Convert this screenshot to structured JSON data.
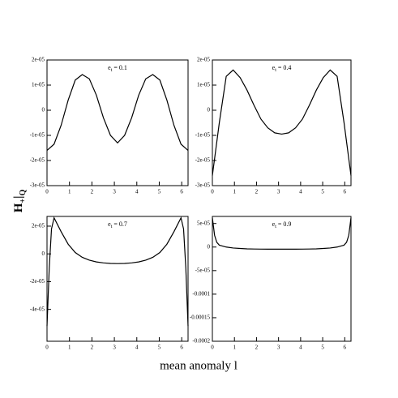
{
  "xlabel": "mean anomaly l",
  "ylabel": [
    {
      "text": "H",
      "sub": false
    },
    {
      "text": "+",
      "sub": true
    },
    {
      "text": "|",
      "sub": false
    },
    {
      "text": "Q",
      "sub": true
    }
  ],
  "chart_data": [
    {
      "type": "line",
      "annotation": {
        "base": "e",
        "sub": "t",
        "rest": " = 0.1"
      },
      "color": "#000000",
      "x": [
        0,
        0.314,
        0.628,
        0.942,
        1.257,
        1.571,
        1.885,
        2.199,
        2.513,
        2.827,
        3.142,
        3.456,
        3.77,
        4.084,
        4.398,
        4.712,
        5.027,
        5.341,
        5.655,
        5.969,
        6.283
      ],
      "values": [
        -1.6e-05,
        -1.35e-05,
        -6e-06,
        4e-06,
        1.2e-05,
        1.42e-05,
        1.25e-05,
        6e-06,
        -3e-06,
        -1e-05,
        -1.3e-05,
        -1e-05,
        -3e-06,
        6e-06,
        1.25e-05,
        1.42e-05,
        1.2e-05,
        4e-06,
        -6e-06,
        -1.35e-05,
        -1.6e-05
      ],
      "xlim": [
        0,
        6.283
      ],
      "xticks": [
        0,
        1,
        2,
        3,
        4,
        5,
        6
      ],
      "ylim": [
        -3e-05,
        2e-05
      ],
      "yticks": [
        {
          "value": -3e-05,
          "label": "-3e-05"
        },
        {
          "value": -2e-05,
          "label": "-2e-05"
        },
        {
          "value": -1e-05,
          "label": "-1e-05"
        },
        0,
        {
          "value": 1e-05,
          "label": "1e-05"
        },
        {
          "value": 2e-05,
          "label": "2e-05"
        }
      ]
    },
    {
      "type": "line",
      "annotation": {
        "base": "e",
        "sub": "t",
        "rest": " = 0.4"
      },
      "color": "#000000",
      "x": [
        0,
        0.314,
        0.628,
        0.942,
        1.257,
        1.571,
        1.885,
        2.199,
        2.513,
        2.827,
        3.142,
        3.456,
        3.77,
        4.084,
        4.398,
        4.712,
        5.027,
        5.341,
        5.655,
        5.969,
        6.283
      ],
      "values": [
        -2.6e-05,
        -5e-06,
        1.35e-05,
        1.6e-05,
        1.3e-05,
        8e-06,
        2e-06,
        -3.5e-06,
        -7e-06,
        -9e-06,
        -9.5e-06,
        -9e-06,
        -7e-06,
        -3.5e-06,
        2e-06,
        8e-06,
        1.3e-05,
        1.6e-05,
        1.35e-05,
        -5e-06,
        -2.6e-05
      ],
      "xlim": [
        0,
        6.283
      ],
      "xticks": [
        0,
        1,
        2,
        3,
        4,
        5,
        6
      ],
      "ylim": [
        -3e-05,
        2e-05
      ],
      "yticks": [
        {
          "value": -3e-05,
          "label": "-3e-05"
        },
        {
          "value": -2e-05,
          "label": "-2e-05"
        },
        {
          "value": -1e-05,
          "label": "-1e-05"
        },
        0,
        {
          "value": 1e-05,
          "label": "1e-05"
        },
        {
          "value": 2e-05,
          "label": "2e-05"
        }
      ]
    },
    {
      "type": "line",
      "annotation": {
        "base": "e",
        "sub": "t",
        "rest": " = 0.7"
      },
      "color": "#000000",
      "x": [
        0,
        0.1,
        0.2,
        0.314,
        0.628,
        0.942,
        1.257,
        1.571,
        1.885,
        2.199,
        2.513,
        2.827,
        3.142,
        3.456,
        3.77,
        4.084,
        4.398,
        4.712,
        5.027,
        5.341,
        5.655,
        5.969,
        6.083,
        6.183,
        6.283
      ],
      "values": [
        -5.2e-05,
        -1e-05,
        1.8e-05,
        2.6e-05,
        1.6e-05,
        7e-06,
        1e-06,
        -2.5e-06,
        -4.5e-06,
        -5.8e-06,
        -6.5e-06,
        -6.9e-06,
        -7e-06,
        -6.9e-06,
        -6.5e-06,
        -5.8e-06,
        -4.5e-06,
        -2.5e-06,
        1e-06,
        7e-06,
        1.6e-05,
        2.6e-05,
        1.8e-05,
        -1e-05,
        -5.2e-05
      ],
      "xlim": [
        0,
        6.283
      ],
      "xticks": [
        0,
        1,
        2,
        3,
        4,
        5,
        6
      ],
      "ylim": [
        -6.3e-05,
        2.7e-05
      ],
      "yticks": [
        {
          "value": -4e-05,
          "label": "-4e-05"
        },
        {
          "value": -2e-05,
          "label": "-2e-05"
        },
        0,
        {
          "value": 2e-05,
          "label": "2e-05"
        }
      ]
    },
    {
      "type": "line",
      "annotation": {
        "base": "e",
        "sub": "t",
        "rest": " = 0.9"
      },
      "color": "#000000",
      "x": [
        0,
        0.1,
        0.2,
        0.314,
        0.628,
        0.942,
        1.257,
        1.571,
        1.885,
        2.199,
        2.513,
        2.827,
        3.142,
        3.456,
        3.77,
        4.084,
        4.398,
        4.712,
        5.027,
        5.341,
        5.655,
        5.969,
        6.083,
        6.183,
        6.283
      ],
      "values": [
        6.2e-05,
        2.5e-05,
        1e-05,
        4e-06,
        0,
        -2e-06,
        -3e-06,
        -3.8e-06,
        -4.2e-06,
        -4.4e-06,
        -4.5e-06,
        -4.5e-06,
        -4.5e-06,
        -4.5e-06,
        -4.5e-06,
        -4.4e-06,
        -4.2e-06,
        -3.8e-06,
        -3e-06,
        -2e-06,
        0,
        4e-06,
        1e-05,
        2.5e-05,
        6.2e-05
      ],
      "xlim": [
        0,
        6.283
      ],
      "xticks": [
        0,
        1,
        2,
        3,
        4,
        5,
        6
      ],
      "ylim": [
        -0.0002,
        6.5e-05
      ],
      "yticks": [
        {
          "value": -0.0002,
          "label": "-0.0002"
        },
        {
          "value": -0.00015,
          "label": "-0.00015"
        },
        {
          "value": -0.0001,
          "label": "-0.0001"
        },
        {
          "value": -5e-05,
          "label": "-5e-05"
        },
        0,
        {
          "value": 5e-05,
          "label": "5e-05"
        }
      ]
    }
  ]
}
